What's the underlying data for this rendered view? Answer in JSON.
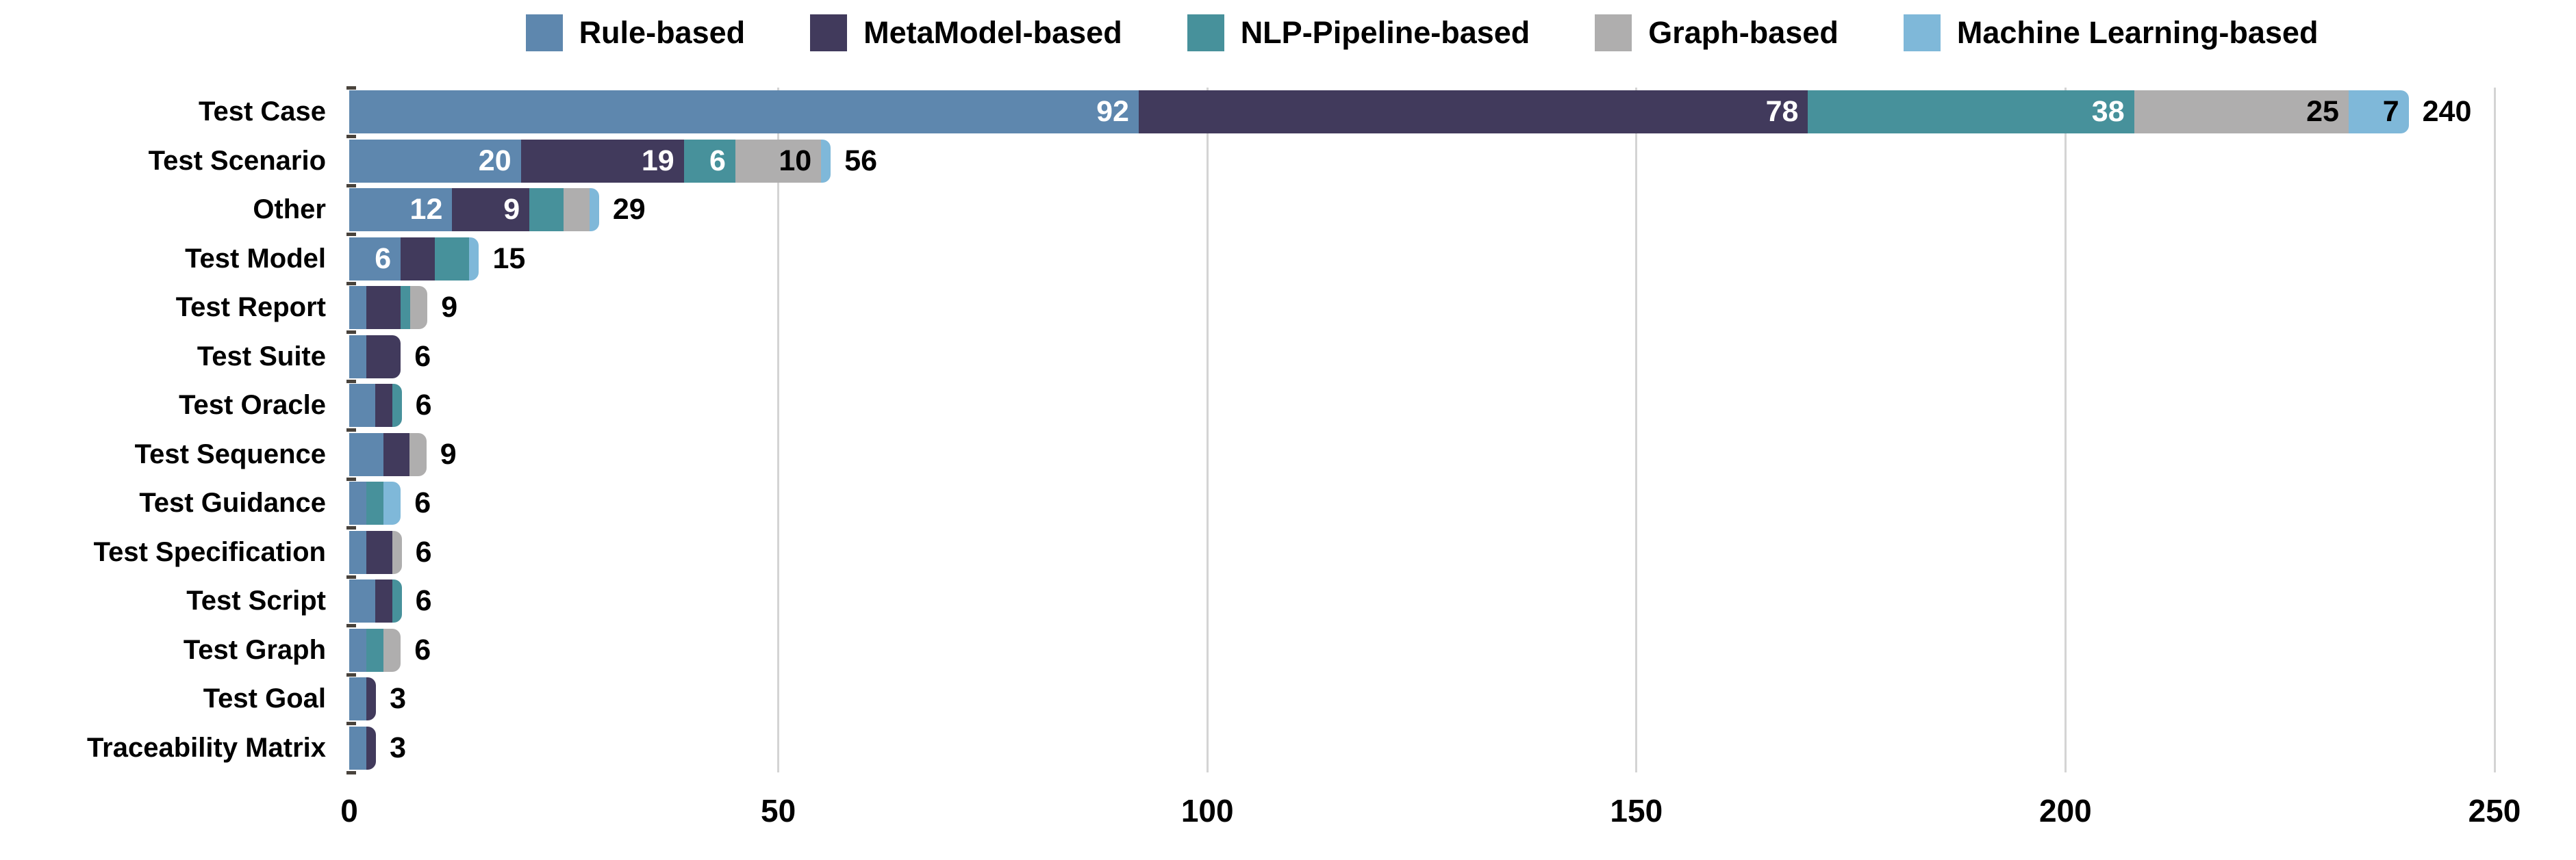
{
  "chart_data": {
    "type": "bar",
    "orientation": "horizontal",
    "stacked": true,
    "title": "",
    "xlabel": "",
    "ylabel": "",
    "xlim": [
      0,
      250
    ],
    "xticks": [
      0,
      50,
      100,
      150,
      200,
      250
    ],
    "grid": "vertical",
    "grid_color": "#d4d4d4",
    "legend_position": "top-center",
    "min_label_value": 6,
    "categories": [
      "Test Case",
      "Test Scenario",
      "Other",
      "Test Model",
      "Test Report",
      "Test Suite",
      "Test Oracle",
      "Test Sequence",
      "Test Guidance",
      "Test Specification",
      "Test Script",
      "Test Graph",
      "Test Goal",
      "Traceability Matrix"
    ],
    "series": [
      {
        "name": "Rule-based",
        "color": "#5e87ae",
        "label_color": "#ffffff",
        "values": [
          92,
          20,
          12,
          6,
          2,
          2,
          3,
          4,
          2,
          2,
          3,
          2,
          2,
          2
        ]
      },
      {
        "name": "MetaModel-based",
        "color": "#413a5c",
        "label_color": "#ffffff",
        "values": [
          78,
          19,
          9,
          4,
          4,
          4,
          2,
          3,
          0,
          3,
          2,
          0,
          1,
          1
        ]
      },
      {
        "name": "NLP-Pipeline-based",
        "color": "#47919b",
        "label_color": "#ffffff",
        "values": [
          38,
          6,
          4,
          4,
          1,
          0,
          1,
          0,
          2,
          0,
          1,
          2,
          0,
          0
        ]
      },
      {
        "name": "Graph-based",
        "color": "#afaeae",
        "label_color": "#000000",
        "values": [
          25,
          10,
          3,
          0,
          2,
          0,
          0,
          2,
          0,
          1,
          0,
          2,
          0,
          0
        ]
      },
      {
        "name": "Machine Learning-based",
        "color": "#7fb8d9",
        "label_color": "#000000",
        "values": [
          7,
          1,
          1,
          1,
          0,
          0,
          0,
          0,
          2,
          0,
          0,
          0,
          0,
          0
        ]
      }
    ],
    "totals": [
      240,
      56,
      29,
      15,
      9,
      6,
      6,
      9,
      6,
      6,
      6,
      6,
      3,
      3
    ]
  }
}
